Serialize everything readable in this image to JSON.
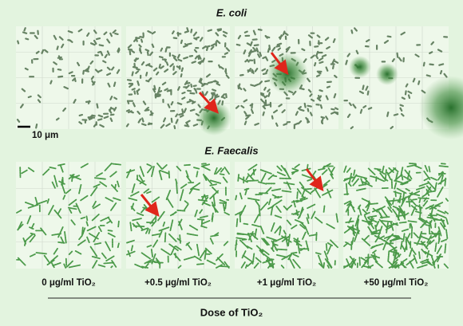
{
  "rows": [
    {
      "title": "E. coli"
    },
    {
      "title": "E. Faecalis"
    }
  ],
  "scale_bar": "10 μm",
  "doses": [
    "0 μg/ml TiO₂",
    "+0.5 μg/ml TiO₂",
    "+1 μg/ml TiO₂",
    "+50 μg/ml TiO₂"
  ],
  "axis_label": "Dose of TiO₂"
}
